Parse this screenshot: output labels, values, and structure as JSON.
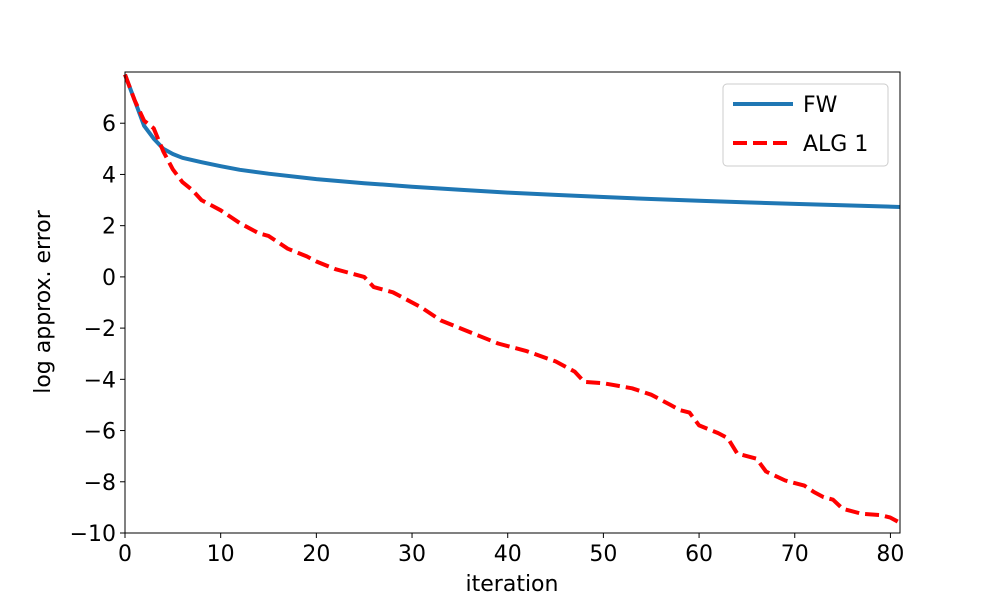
{
  "chart_data": {
    "type": "line",
    "xlabel": "iteration",
    "ylabel": "log approx. error",
    "xlim": [
      0,
      81
    ],
    "ylim": [
      -10,
      8
    ],
    "x_ticks": [
      0,
      10,
      20,
      30,
      40,
      50,
      60,
      70,
      80
    ],
    "y_ticks": [
      6,
      4,
      2,
      0,
      -2,
      -4,
      -6,
      -8,
      -10
    ],
    "y_tick_labels": [
      "6",
      "4",
      "2",
      "0",
      "−2",
      "−4",
      "−6",
      "−8",
      "−10"
    ],
    "grid": false,
    "legend_position": "top-right",
    "series": [
      {
        "name": "FW",
        "color": "#1f77b4",
        "style": "solid",
        "points": [
          [
            0,
            7.9
          ],
          [
            1,
            6.9
          ],
          [
            2,
            5.9
          ],
          [
            3,
            5.4
          ],
          [
            4,
            5.0
          ],
          [
            5,
            4.8
          ],
          [
            6,
            4.65
          ],
          [
            8,
            4.48
          ],
          [
            10,
            4.32
          ],
          [
            12,
            4.18
          ],
          [
            15,
            4.03
          ],
          [
            20,
            3.82
          ],
          [
            25,
            3.66
          ],
          [
            30,
            3.52
          ],
          [
            35,
            3.4
          ],
          [
            40,
            3.29
          ],
          [
            45,
            3.2
          ],
          [
            50,
            3.12
          ],
          [
            55,
            3.04
          ],
          [
            60,
            2.97
          ],
          [
            65,
            2.91
          ],
          [
            70,
            2.85
          ],
          [
            75,
            2.8
          ],
          [
            81,
            2.73
          ]
        ]
      },
      {
        "name": "ALG 1",
        "color": "#ff0000",
        "style": "dashed",
        "points": [
          [
            0,
            7.9
          ],
          [
            1,
            6.9
          ],
          [
            2,
            6.1
          ],
          [
            3,
            5.8
          ],
          [
            4,
            4.9
          ],
          [
            5,
            4.2
          ],
          [
            6,
            3.7
          ],
          [
            7,
            3.4
          ],
          [
            8,
            3.0
          ],
          [
            10,
            2.6
          ],
          [
            12,
            2.1
          ],
          [
            14,
            1.7
          ],
          [
            15,
            1.6
          ],
          [
            17,
            1.1
          ],
          [
            19,
            0.8
          ],
          [
            20,
            0.6
          ],
          [
            22,
            0.3
          ],
          [
            25,
            0.0
          ],
          [
            26,
            -0.4
          ],
          [
            28,
            -0.6
          ],
          [
            29,
            -0.8
          ],
          [
            31,
            -1.2
          ],
          [
            33,
            -1.7
          ],
          [
            35,
            -2.0
          ],
          [
            37,
            -2.3
          ],
          [
            39,
            -2.6
          ],
          [
            42,
            -2.9
          ],
          [
            45,
            -3.3
          ],
          [
            47,
            -3.7
          ],
          [
            48,
            -4.1
          ],
          [
            50,
            -4.15
          ],
          [
            53,
            -4.35
          ],
          [
            55,
            -4.6
          ],
          [
            57,
            -5.0
          ],
          [
            58,
            -5.2
          ],
          [
            59,
            -5.3
          ],
          [
            60,
            -5.8
          ],
          [
            62,
            -6.1
          ],
          [
            63,
            -6.3
          ],
          [
            64,
            -6.9
          ],
          [
            66,
            -7.1
          ],
          [
            67,
            -7.6
          ],
          [
            69,
            -7.95
          ],
          [
            71,
            -8.15
          ],
          [
            72,
            -8.4
          ],
          [
            73,
            -8.6
          ],
          [
            74,
            -8.7
          ],
          [
            75,
            -9.05
          ],
          [
            77,
            -9.25
          ],
          [
            79,
            -9.3
          ],
          [
            80,
            -9.4
          ],
          [
            81,
            -9.6
          ]
        ]
      }
    ]
  }
}
